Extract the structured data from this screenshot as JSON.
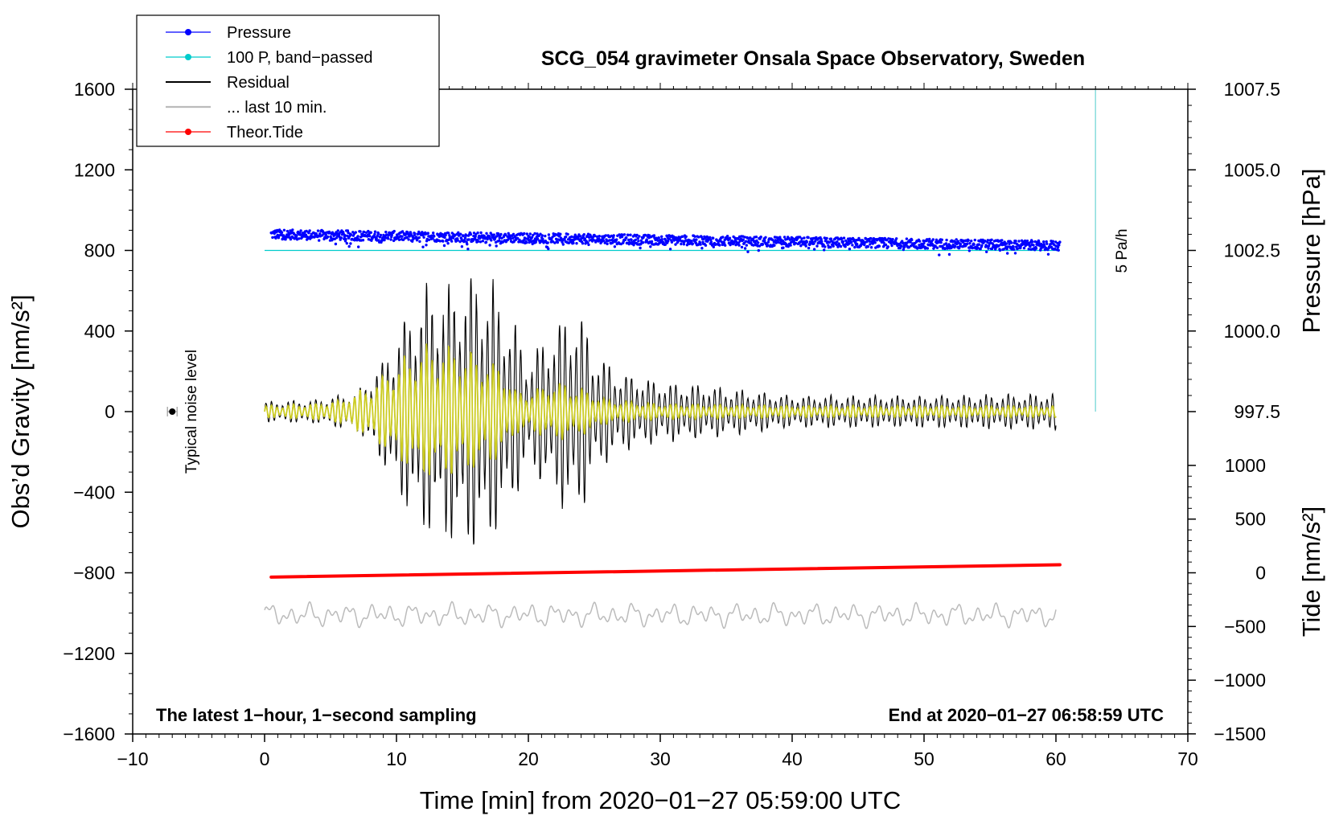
{
  "chart_data": {
    "type": "line",
    "title": "SCG_054 gravimeter Onsala Space Observatory, Sweden",
    "xlabel": "Time [min] from 2020−01−27 05:59:00 UTC",
    "ylabel_left": "Obs’d Gravity [nm/s²]",
    "ylabel_right_top": "Pressure [hPa]",
    "ylabel_right_bottom": "Tide [nm/s²]",
    "xlim": [
      -10,
      70
    ],
    "ylim": [
      -1600,
      1600
    ],
    "x_ticks": [
      -10,
      0,
      10,
      20,
      30,
      40,
      50,
      60,
      70
    ],
    "x_tick_labels": [
      "−10",
      "0",
      "10",
      "20",
      "30",
      "40",
      "50",
      "60",
      "70"
    ],
    "y_ticks": [
      1600,
      1200,
      800,
      400,
      0,
      -400,
      -800,
      -1200,
      -1600
    ],
    "y_tick_labels": [
      "1600",
      "1200",
      "800",
      "400",
      "0",
      "−400",
      "−800",
      "−1200",
      "−1600"
    ],
    "pressure_axis": {
      "ticks": [
        1007.5,
        1005.0,
        1002.5,
        1000.0,
        997.5
      ],
      "tick_labels": [
        "1007.5",
        "1005.0",
        "1002.5",
        "1000.0",
        "997.5"
      ],
      "gravity_at_1002_5": 800,
      "gravity_per_hPa": 160
    },
    "tide_axis": {
      "ticks": [
        1000,
        500,
        0,
        -500,
        -1000,
        -1500
      ],
      "tick_labels": [
        "1000",
        "500",
        "0",
        "−500",
        "−1000",
        "−1500"
      ],
      "gravity_at_0": -800,
      "gravity_per_unit": 0.533
    },
    "legend": [
      {
        "label": "Pressure",
        "color": "#0000ff",
        "marker": true
      },
      {
        "label": "100 P, band−passed",
        "color": "#00cccc",
        "marker": true
      },
      {
        "label": "Residual",
        "color": "#000000",
        "marker": false
      },
      {
        "label": "... last 10 min.",
        "color": "#bbbbbb",
        "marker": false
      },
      {
        "label": "Theor.Tide",
        "color": "#ff0000",
        "marker": true
      }
    ],
    "series": [
      {
        "name": "Pressure",
        "color": "#0000ff",
        "style": "dots",
        "axis": "pressure",
        "x_range": [
          0.5,
          60.3
        ],
        "start_hPa": 1003.0,
        "end_hPa": 1002.65,
        "scatter_hPa": 0.15
      },
      {
        "name": "100 P, band−passed",
        "color": "#00cccc",
        "style": "line",
        "axis": "gravity",
        "x": [
          0,
          60.3
        ],
        "y": [
          800,
          800
        ]
      },
      {
        "name": "Residual",
        "color": "#000000",
        "style": "line",
        "axis": "gravity",
        "x_range": [
          0,
          60.0
        ],
        "baseline": 0,
        "envelope": {
          "x": [
            0,
            4,
            7,
            9,
            10,
            12,
            14,
            16,
            17,
            18,
            19,
            20,
            21,
            22,
            23,
            24,
            25,
            27,
            30,
            35,
            40,
            50,
            60
          ],
          "amp": [
            50,
            60,
            100,
            260,
            400,
            620,
            640,
            700,
            670,
            560,
            450,
            260,
            360,
            430,
            500,
            500,
            300,
            200,
            150,
            120,
            80,
            80,
            90
          ]
        }
      },
      {
        "name": "Residual (yellow overlay)",
        "color": "#cccc22",
        "style": "line",
        "axis": "gravity",
        "x_range": [
          0,
          60.0
        ],
        "baseline": 0,
        "envelope": {
          "x": [
            0,
            4,
            6,
            8,
            10,
            12,
            14,
            16,
            18,
            19,
            20,
            22,
            24,
            26,
            30,
            40,
            60
          ],
          "amp": [
            30,
            40,
            60,
            130,
            240,
            330,
            330,
            300,
            230,
            110,
            100,
            150,
            120,
            60,
            40,
            30,
            30
          ]
        }
      },
      {
        "name": "... last 10 min.",
        "color": "#bbbbbb",
        "style": "line",
        "axis": "gravity",
        "x_range": [
          0,
          60.0
        ],
        "baseline": -1010,
        "amp": 50,
        "peak_max": -850,
        "peak_min": -1120
      },
      {
        "name": "Theor.Tide",
        "color": "#ff0000",
        "style": "thick-line",
        "axis": "tide",
        "x": [
          0.5,
          60.3
        ],
        "y_tide": [
          -40,
          75
        ]
      },
      {
        "name": "Typical noise level",
        "color": "#000000",
        "style": "point",
        "axis": "gravity",
        "x": [
          -7
        ],
        "y": [
          0
        ]
      },
      {
        "name": "5 Pa/h",
        "color": "#88dddd",
        "style": "bar",
        "axis": "gravity",
        "x": [
          63,
          63
        ],
        "y": [
          1600,
          0
        ]
      }
    ],
    "annotations": {
      "noise": "Typical noise level",
      "rate": "5 Pa/h",
      "left_bottom": "The latest 1−hour, 1−second sampling",
      "right_bottom": "End at 2020−01−27 06:58:59 UTC"
    }
  }
}
